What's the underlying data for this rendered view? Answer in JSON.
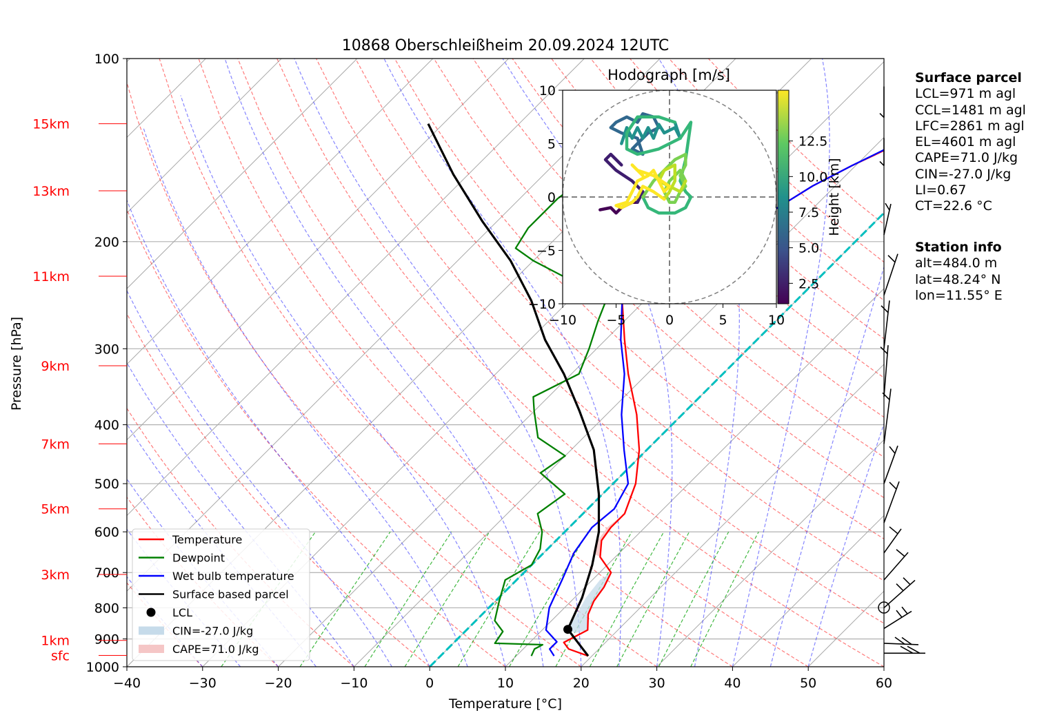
{
  "title": "10868 Oberschleißheim 20.09.2024 12UTC",
  "chart_data": {
    "type": "skew-T log-p diagram",
    "xlabel": "Temperature [°C]",
    "ylabel": "Pressure [hPa]",
    "xlim": [
      -40,
      60
    ],
    "ylim_hpa": [
      1000,
      100
    ],
    "x_ticks": [
      -40,
      -30,
      -20,
      -10,
      0,
      10,
      20,
      30,
      40,
      50,
      60
    ],
    "p_ticks": [
      100,
      200,
      300,
      400,
      500,
      600,
      700,
      800,
      900,
      1000
    ],
    "height_labels": [
      {
        "text": "15km",
        "p": 128
      },
      {
        "text": "13km",
        "p": 165
      },
      {
        "text": "11km",
        "p": 228
      },
      {
        "text": "9km",
        "p": 320
      },
      {
        "text": "7km",
        "p": 430
      },
      {
        "text": "5km",
        "p": 550
      },
      {
        "text": "3km",
        "p": 705
      },
      {
        "text": "1km",
        "p": 905
      },
      {
        "text": "sfc",
        "p": 958
      }
    ],
    "height_label_color": "#ff0000",
    "series": [
      {
        "name": "Temperature",
        "color": "#ff0000",
        "points": [
          [
            19.5,
            960
          ],
          [
            16.0,
            935
          ],
          [
            14.5,
            912
          ],
          [
            16.0,
            870
          ],
          [
            14.0,
            820
          ],
          [
            13.0,
            780
          ],
          [
            12.5,
            740
          ],
          [
            11.5,
            700
          ],
          [
            8.0,
            660
          ],
          [
            6.0,
            620
          ],
          [
            5.5,
            590
          ],
          [
            5.5,
            560
          ],
          [
            3.0,
            500
          ],
          [
            -1.0,
            440
          ],
          [
            -6.0,
            385
          ],
          [
            -12.5,
            330
          ],
          [
            -17.5,
            290
          ],
          [
            -23.0,
            250
          ],
          [
            -27.0,
            235
          ],
          [
            -27.0,
            228
          ],
          [
            -22.0,
            210
          ],
          [
            -18.0,
            200
          ],
          [
            -15.0,
            178
          ],
          [
            -13.0,
            162
          ],
          [
            -10.5,
            150
          ],
          [
            -7.8,
            140
          ],
          [
            -7.0,
            132
          ],
          [
            -5.2,
            125
          ],
          [
            -4.5,
            120
          ]
        ]
      },
      {
        "name": "Dewpoint",
        "color": "#008000",
        "points": [
          [
            12.0,
            960
          ],
          [
            11.5,
            935
          ],
          [
            12.0,
            920
          ],
          [
            5.5,
            915
          ],
          [
            5.0,
            875
          ],
          [
            2.5,
            840
          ],
          [
            0.5,
            780
          ],
          [
            -1.5,
            720
          ],
          [
            0.0,
            680
          ],
          [
            -1.0,
            640
          ],
          [
            -3.0,
            600
          ],
          [
            -6.0,
            560
          ],
          [
            -5.0,
            520
          ],
          [
            -11.0,
            480
          ],
          [
            -10.0,
            450
          ],
          [
            -16.0,
            420
          ],
          [
            -20.0,
            380
          ],
          [
            -22.0,
            360
          ],
          [
            -19.0,
            330
          ],
          [
            -21.0,
            300
          ],
          [
            -23.5,
            270
          ],
          [
            -26.0,
            240
          ],
          [
            -34.0,
            228
          ],
          [
            -40.0,
            215
          ],
          [
            -44.0,
            205
          ],
          [
            -45.0,
            190
          ],
          [
            -45.0,
            170
          ],
          [
            -44.0,
            155
          ],
          [
            -41.0,
            140
          ],
          [
            -39.0,
            128
          ],
          [
            -37.5,
            122
          ]
        ]
      },
      {
        "name": "Wet bulb temperature",
        "color": "#0000ff",
        "points": [
          [
            15.0,
            960
          ],
          [
            13.5,
            935
          ],
          [
            13.5,
            910
          ],
          [
            10.5,
            870
          ],
          [
            8.0,
            800
          ],
          [
            6.0,
            720
          ],
          [
            4.0,
            650
          ],
          [
            3.0,
            590
          ],
          [
            3.5,
            550
          ],
          [
            2.0,
            500
          ],
          [
            -3.0,
            440
          ],
          [
            -8.0,
            385
          ],
          [
            -13.0,
            330
          ],
          [
            -18.0,
            290
          ],
          [
            -23.0,
            250
          ],
          [
            -27.0,
            235
          ],
          [
            -27.0,
            228
          ],
          [
            -22.5,
            210
          ],
          [
            -18.0,
            200
          ],
          [
            -15.0,
            178
          ],
          [
            -13.0,
            162
          ],
          [
            -10.5,
            150
          ],
          [
            -8.0,
            140
          ],
          [
            -7.2,
            132
          ],
          [
            -5.5,
            125
          ],
          [
            -4.5,
            120
          ]
        ]
      },
      {
        "name": "Surface based parcel",
        "color": "#000000",
        "points": [
          [
            19.5,
            960
          ],
          [
            13.3,
            868
          ],
          [
            11.0,
            770
          ],
          [
            8.0,
            680
          ],
          [
            4.5,
            600
          ],
          [
            -0.5,
            520
          ],
          [
            -7.0,
            440
          ],
          [
            -14.0,
            380
          ],
          [
            -21.0,
            330
          ],
          [
            -28.0,
            290
          ],
          [
            -35.0,
            250
          ],
          [
            -43.0,
            215
          ],
          [
            -52.0,
            185
          ],
          [
            -62.0,
            155
          ],
          [
            -72.0,
            128
          ]
        ]
      }
    ],
    "lcl": {
      "label": "LCL",
      "t": 13.3,
      "p": 868
    },
    "cin_label": "CIN=-27.0 J/kg",
    "cape_label": "CAPE=71.0 J/kg",
    "zero_isotherm_color": "#00bfbf",
    "legend": [
      {
        "label": "Temperature",
        "kind": "line",
        "color": "#ff0000"
      },
      {
        "label": "Dewpoint",
        "kind": "line",
        "color": "#008000"
      },
      {
        "label": "Wet bulb temperature",
        "kind": "line",
        "color": "#0000ff"
      },
      {
        "label": "Surface based parcel",
        "kind": "line",
        "color": "#000000"
      },
      {
        "label": "LCL",
        "kind": "dot",
        "color": "#000000"
      },
      {
        "label": "CIN=-27.0 J/kg",
        "kind": "patch",
        "color": "#c6dbea"
      },
      {
        "label": "CAPE=71.0 J/kg",
        "kind": "patch",
        "color": "#f5c6c6"
      }
    ],
    "legend_position": "lower-left",
    "hodograph": {
      "title": "Hodograph [m/s]",
      "xlim": [
        -10,
        10
      ],
      "ylim": [
        -10,
        10
      ],
      "ticks": [
        -10,
        -5,
        0,
        5,
        10
      ],
      "colorbar_label": "Height [km]",
      "colorbar_ticks": [
        2.5,
        5.0,
        7.5,
        10.0,
        12.5
      ],
      "segments": [
        {
          "color": "#440154",
          "points": [
            [
              -6.5,
              -1.2
            ],
            [
              -5.5,
              -1.0
            ],
            [
              -5.0,
              -1.5
            ],
            [
              -4.5,
              -1.0
            ],
            [
              -3.5,
              -0.5
            ],
            [
              -3.0,
              -0.5
            ]
          ]
        },
        {
          "color": "#3e1d6e",
          "points": [
            [
              -3.0,
              -0.5
            ],
            [
              -2.5,
              0.5
            ],
            [
              -3.5,
              1.5
            ],
            [
              -5.0,
              2.5
            ],
            [
              -6.0,
              3.5
            ],
            [
              -5.5,
              4.0
            ],
            [
              -4.5,
              3.0
            ]
          ]
        },
        {
          "color": "#31688e",
          "points": [
            [
              -5.0,
              7.0
            ],
            [
              -4.0,
              7.5
            ],
            [
              -3.0,
              7.0
            ],
            [
              -2.5,
              7.8
            ],
            [
              -1.5,
              7.5
            ],
            [
              -1.0,
              6.5
            ],
            [
              -2.0,
              6.0
            ],
            [
              -3.0,
              5.0
            ],
            [
              -3.5,
              4.5
            ],
            [
              -2.5,
              4.0
            ],
            [
              -3.0,
              5.5
            ],
            [
              -4.5,
              6.0
            ],
            [
              -5.5,
              6.5
            ],
            [
              -5.0,
              7.0
            ]
          ]
        },
        {
          "color": "#21918c",
          "points": [
            [
              -4.5,
              5.0
            ],
            [
              -4.0,
              6.5
            ],
            [
              -3.5,
              5.5
            ],
            [
              -3.0,
              6.5
            ],
            [
              -2.5,
              5.5
            ],
            [
              -2.0,
              6.5
            ],
            [
              -1.5,
              5.5
            ],
            [
              -1.0,
              6.8
            ],
            [
              -0.5,
              6.0
            ],
            [
              0.5,
              6.5
            ],
            [
              1.0,
              5.5
            ],
            [
              0.5,
              7.0
            ]
          ]
        },
        {
          "color": "#35b779",
          "points": [
            [
              0.5,
              7.0
            ],
            [
              -1.0,
              7.5
            ],
            [
              -3.0,
              7.5
            ],
            [
              -4.0,
              6.0
            ],
            [
              -4.0,
              4.5
            ],
            [
              -3.0,
              4.0
            ],
            [
              -1.0,
              4.5
            ],
            [
              1.0,
              5.5
            ],
            [
              2.0,
              7.0
            ],
            [
              1.5,
              3.5
            ],
            [
              1.0,
              1.5
            ],
            [
              1.5,
              0.5
            ],
            [
              2.0,
              0.0
            ],
            [
              1.5,
              -1.0
            ],
            [
              0.5,
              -1.5
            ],
            [
              -1.0,
              -1.5
            ],
            [
              -2.0,
              -1.0
            ],
            [
              -2.5,
              0.0
            ]
          ]
        },
        {
          "color": "#7ad151",
          "points": [
            [
              -2.5,
              0.0
            ],
            [
              -1.5,
              1.5
            ],
            [
              -0.5,
              2.5
            ],
            [
              0.5,
              3.5
            ],
            [
              1.5,
              4.0
            ],
            [
              1.5,
              3.0
            ],
            [
              1.0,
              2.0
            ],
            [
              1.5,
              1.0
            ],
            [
              1.0,
              0.5
            ],
            [
              0.5,
              -0.5
            ],
            [
              0.0,
              -0.5
            ],
            [
              -0.5,
              0.5
            ],
            [
              0.0,
              1.5
            ],
            [
              1.0,
              2.5
            ],
            [
              1.5,
              1.5
            ]
          ]
        },
        {
          "color": "#bddf26",
          "points": [
            [
              1.5,
              1.5
            ],
            [
              1.0,
              0.5
            ],
            [
              0.0,
              1.0
            ],
            [
              -1.0,
              1.5
            ],
            [
              -0.5,
              2.5
            ],
            [
              0.5,
              3.0
            ],
            [
              0.5,
              1.5
            ],
            [
              0.0,
              0.5
            ],
            [
              -0.5,
              -0.2
            ]
          ]
        },
        {
          "color": "#fde725",
          "points": [
            [
              -0.5,
              -0.2
            ],
            [
              -1.5,
              0.5
            ],
            [
              -2.5,
              1.0
            ],
            [
              -3.0,
              0.0
            ],
            [
              -3.5,
              -0.5
            ],
            [
              -4.5,
              -1.0
            ],
            [
              -5.0,
              -0.8
            ],
            [
              -4.0,
              -0.5
            ],
            [
              -3.5,
              0.5
            ],
            [
              -3.0,
              1.5
            ],
            [
              -2.0,
              2.0
            ],
            [
              -1.5,
              2.5
            ],
            [
              -1.0,
              1.5
            ],
            [
              -0.5,
              0.5
            ],
            [
              0.0,
              1.0
            ],
            [
              -1.5,
              2.0
            ],
            [
              -3.0,
              2.5
            ],
            [
              -3.5,
              3.0
            ],
            [
              -2.5,
              2.0
            ]
          ]
        }
      ]
    },
    "wind_barbs_position": "right margin"
  },
  "surface_parcel": {
    "heading": "Surface parcel",
    "lines": [
      "LCL=971 m agl",
      "CCL=1481 m agl",
      "LFC=2861 m agl",
      "EL=4601 m agl",
      "CAPE=71.0 J/kg",
      "CIN=-27.0 J/kg",
      "LI=0.67",
      "CT=22.6 °C"
    ]
  },
  "station_info": {
    "heading": "Station info",
    "lines": [
      "alt=484.0 m",
      "lat=48.24° N",
      "lon=11.55° E"
    ]
  }
}
